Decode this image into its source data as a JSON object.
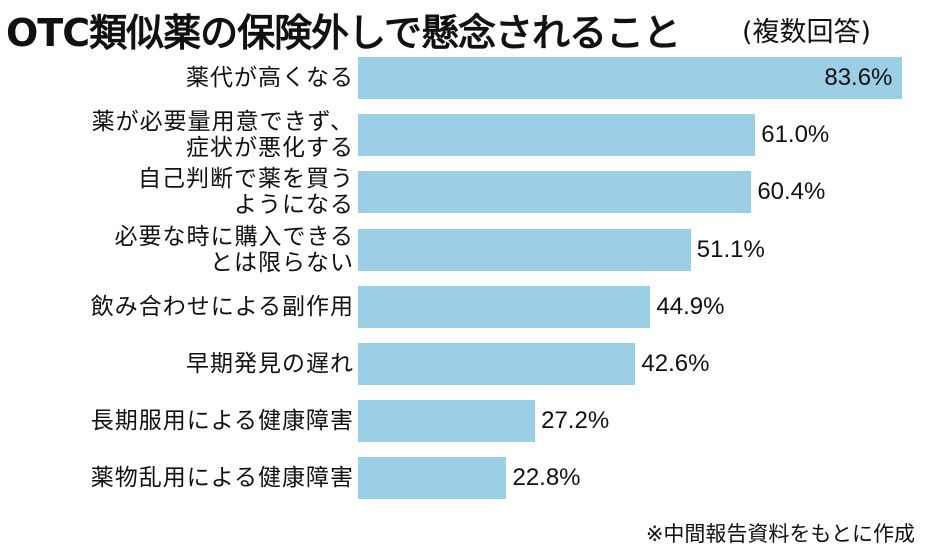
{
  "chart_data": {
    "type": "bar",
    "orientation": "horizontal",
    "title": "OTC類似薬の保険外しで懸念されること",
    "subtitle": "(複数回答)",
    "categories": [
      "薬代が高くなる",
      "薬が必要量用意できず、\n症状が悪化する",
      "自己判断で薬を買う\nようになる",
      "必要な時に購入できる\nとは限らない",
      "飲み合わせによる副作用",
      "早期発見の遅れ",
      "長期服用による健康障害",
      "薬物乱用による健康障害"
    ],
    "values": [
      83.6,
      61.0,
      60.4,
      51.1,
      44.9,
      42.6,
      27.2,
      22.8
    ],
    "value_labels": [
      "83.6%",
      "61.0%",
      "60.4%",
      "51.1%",
      "44.9%",
      "42.6%",
      "27.2%",
      "22.8%"
    ],
    "color": "#9ccfe6",
    "xlim": [
      0,
      84
    ],
    "note": "※中間報告資料をもとに作成"
  }
}
